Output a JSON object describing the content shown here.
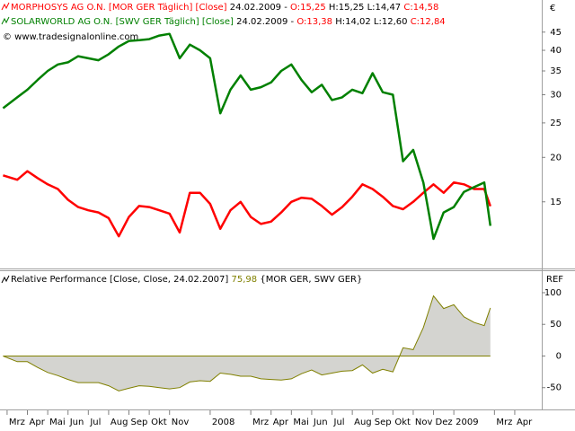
{
  "chart_data": [
    {
      "type": "line",
      "log_scale": true,
      "currency": "€",
      "copyright": "© www.tradesignalonline.com",
      "x": [
        -0.2,
        0.5,
        1,
        1.5,
        2,
        2.5,
        3,
        3.5,
        4,
        4.5,
        5,
        5.5,
        6,
        6.5,
        7,
        7.5,
        8,
        8.5,
        9,
        9.5,
        10,
        10.5,
        11,
        11.5,
        12,
        12.5,
        13,
        13.5,
        14,
        14.5,
        15,
        15.5,
        16,
        16.5,
        17,
        17.5,
        18,
        18.5,
        19,
        19.5,
        20,
        20.5,
        21,
        21.5,
        22,
        22.5,
        23,
        23.5,
        23.8
      ],
      "xlim": [
        -0.35,
        26.33
      ],
      "ylim": [
        9.8,
        55.4
      ],
      "yticks": [
        15,
        20,
        25,
        30,
        35,
        40,
        45
      ],
      "series": [
        {
          "name": "MORPHOSYS AG O.N. [MOR GER  Täglich] [Close]",
          "color": "#ff0000",
          "date": "24.02.2009 -",
          "open": "O:15,25",
          "high_low": "H:15,25 L:14,47",
          "close": "C:14,58",
          "values": [
            17.8,
            17.3,
            18.3,
            17.5,
            16.8,
            16.3,
            15.2,
            14.5,
            14.2,
            14.0,
            13.5,
            12.0,
            13.6,
            14.6,
            14.5,
            14.2,
            13.9,
            12.3,
            15.9,
            15.9,
            14.8,
            12.6,
            14.2,
            15.0,
            13.6,
            13.0,
            13.2,
            14.0,
            15.0,
            15.4,
            15.3,
            14.6,
            13.8,
            14.5,
            15.5,
            16.8,
            16.3,
            15.5,
            14.6,
            14.3,
            15.0,
            15.9,
            16.8,
            15.9,
            17.0,
            16.8,
            16.3,
            16.3,
            14.58
          ]
        },
        {
          "name": "SOLARWORLD AG O.N. [SWV GER  Täglich] [Close]",
          "color": "#008000",
          "date": "24.02.2009 -",
          "open": "O:13,38",
          "high_low": "H:14,02 L:12,60",
          "close": "C:12,84",
          "values": [
            27.5,
            29.5,
            31.0,
            33.0,
            35.0,
            36.5,
            37.0,
            38.5,
            38.0,
            37.5,
            39.0,
            41.0,
            42.5,
            42.7,
            43.0,
            44.0,
            44.5,
            38.0,
            41.5,
            40.0,
            38.0,
            26.6,
            31.0,
            34.0,
            31.0,
            31.5,
            32.5,
            35.0,
            36.5,
            33.0,
            30.5,
            32.0,
            29.0,
            29.5,
            31.0,
            30.3,
            34.5,
            30.5,
            30.0,
            19.5,
            21.0,
            17.0,
            11.8,
            14.0,
            14.5,
            16.0,
            16.5,
            17.0,
            12.84
          ]
        }
      ]
    },
    {
      "type": "area",
      "ref_label": "REF",
      "x": [
        -0.2,
        0.5,
        1,
        1.5,
        2,
        2.5,
        3,
        3.5,
        4,
        4.5,
        5,
        5.5,
        6,
        6.5,
        7,
        7.5,
        8,
        8.5,
        9,
        9.5,
        10,
        10.5,
        11,
        11.5,
        12,
        12.5,
        13,
        13.5,
        14,
        14.5,
        15,
        15.5,
        16,
        16.5,
        17,
        17.5,
        18,
        18.5,
        19,
        19.5,
        20,
        20.5,
        21,
        21.5,
        22,
        22.5,
        23,
        23.5,
        23.8
      ],
      "xlim": [
        -0.35,
        26.33
      ],
      "ylim": [
        -83,
        134
      ],
      "yticks": [
        -50,
        0,
        50,
        100
      ],
      "xticks": [
        {
          "value": 0,
          "label": "Mrz"
        },
        {
          "value": 1,
          "label": "Apr"
        },
        {
          "value": 2,
          "label": "Mai"
        },
        {
          "value": 3,
          "label": "Jun"
        },
        {
          "value": 4,
          "label": "Jul"
        },
        {
          "value": 5,
          "label": "Aug"
        },
        {
          "value": 6,
          "label": "Sep"
        },
        {
          "value": 7,
          "label": "Okt"
        },
        {
          "value": 8,
          "label": "Nov"
        },
        {
          "value": 10,
          "label": "2008"
        },
        {
          "value": 12,
          "label": "Mrz"
        },
        {
          "value": 13,
          "label": "Apr"
        },
        {
          "value": 14,
          "label": "Mai"
        },
        {
          "value": 15,
          "label": "Jun"
        },
        {
          "value": 16,
          "label": "Jul"
        },
        {
          "value": 17,
          "label": "Aug"
        },
        {
          "value": 18,
          "label": "Sep"
        },
        {
          "value": 19,
          "label": "Okt"
        },
        {
          "value": 20,
          "label": "Nov"
        },
        {
          "value": 21,
          "label": "Dez"
        },
        {
          "value": 22,
          "label": "2009"
        },
        {
          "value": 24,
          "label": "Mrz"
        },
        {
          "value": 25,
          "label": "Apr"
        }
      ],
      "series": [
        {
          "name": "Relative Performance [Close, Close, 24.02.2007]",
          "color": "#808000",
          "fill": "#d4d4d0",
          "last_value_label": "75,98",
          "symbols": "{MOR GER, SWV GER}",
          "values": [
            0,
            -9,
            -9,
            -18,
            -26,
            -31,
            -37,
            -42,
            -42,
            -42,
            -47,
            -55,
            -51,
            -47,
            -48,
            -50,
            -52,
            -50,
            -41,
            -39,
            -40,
            -27,
            -29,
            -32,
            -32,
            -36,
            -37,
            -38,
            -36,
            -28,
            -22,
            -30,
            -27,
            -24,
            -23,
            -14,
            -27,
            -21,
            -25,
            13,
            10,
            45,
            95,
            75,
            81,
            62,
            53,
            48,
            75.98
          ]
        }
      ]
    }
  ]
}
